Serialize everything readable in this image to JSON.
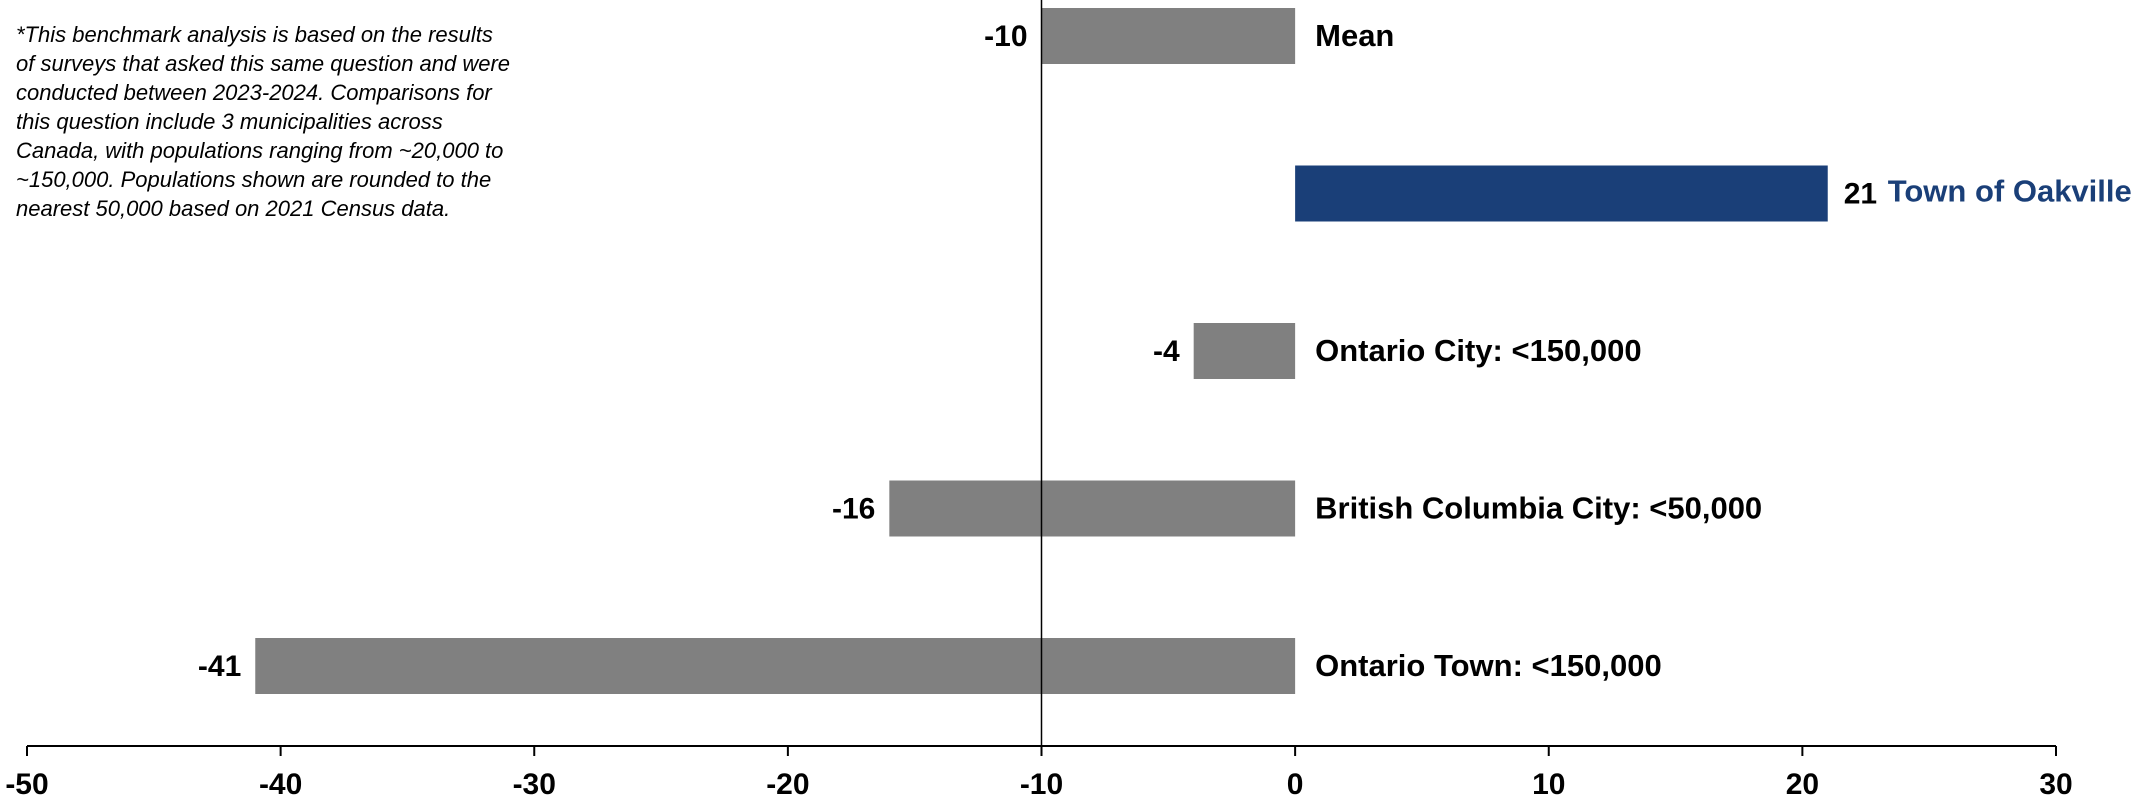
{
  "footnote": "*This benchmark analysis is based on the results of surveys that asked this same question and were conducted between 2023-2024. Comparisons for this question include 3 municipalities across Canada, with populations ranging from ~20,000 to ~150,000. Populations shown are rounded to the nearest 50,000 based on 2021 Census data.",
  "colors": {
    "bar_default": "#808080",
    "bar_highlight": "#1a3f78",
    "label_highlight": "#1a3f78",
    "text": "#000000"
  },
  "chart_data": {
    "type": "bar",
    "orientation": "horizontal",
    "categories": [
      "Mean",
      "Town of Oakville",
      "Ontario City: <150,000",
      "British Columbia City: <50,000",
      "Ontario Town: <150,000"
    ],
    "values": [
      -10,
      21,
      -4,
      -16,
      -41
    ],
    "value_labels": [
      "-10",
      "21",
      "-4",
      "-16",
      "-41"
    ],
    "highlight": "Town of Oakville",
    "xlim": [
      -50,
      30
    ],
    "x_ticks": [
      -50,
      -40,
      -30,
      -20,
      -10,
      0,
      10,
      20,
      30
    ],
    "x_tick_labels": [
      "-50",
      "-40",
      "-30",
      "-20",
      "-10",
      "0",
      "10",
      "20",
      "30"
    ],
    "reference_line": -10,
    "grid": false,
    "legend": "none",
    "title": "",
    "xlabel": "",
    "ylabel": ""
  }
}
